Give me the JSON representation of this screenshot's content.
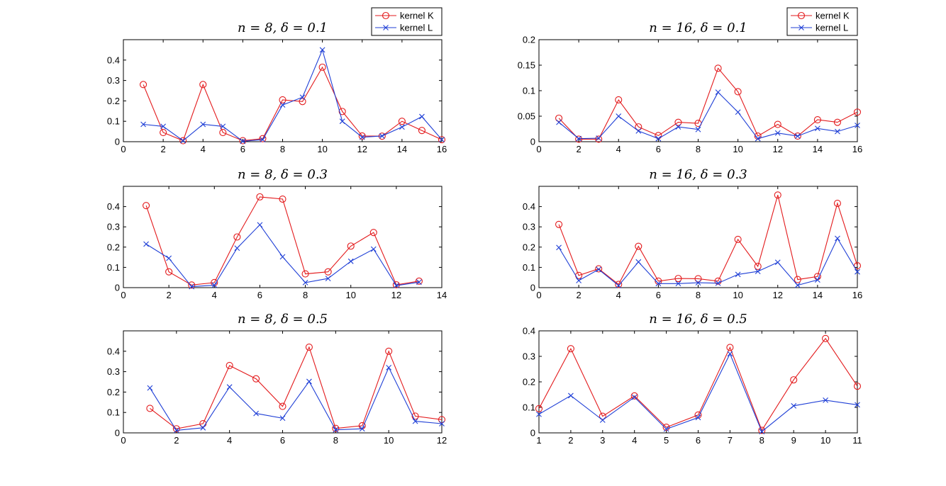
{
  "colors": {
    "kernel_K": "#e31a1c",
    "kernel_L": "#1f3fd6"
  },
  "chart_data": [
    {
      "type": "line",
      "title": "n = 8, δ = 0.1",
      "xlim": [
        0,
        16
      ],
      "ylim": [
        0,
        0.5
      ],
      "xticks": [
        0,
        2,
        4,
        6,
        8,
        10,
        12,
        14,
        16
      ],
      "yticks": [
        0,
        0.1,
        0.2,
        0.3,
        0.4
      ],
      "ytick_labels": [
        "0",
        "0.1",
        "0.2",
        "0.3",
        "0.4"
      ],
      "legend": {
        "placement": "top-right",
        "entries": [
          "kernel K",
          "kernel L"
        ]
      },
      "series": [
        {
          "name": "kernel K",
          "marker": "circle",
          "x": [
            1,
            2,
            3,
            4,
            5,
            6,
            7,
            8,
            9,
            10,
            11,
            12,
            13,
            14,
            15,
            16
          ],
          "values": [
            0.28,
            0.045,
            0.005,
            0.28,
            0.045,
            0.005,
            0.015,
            0.205,
            0.197,
            0.365,
            0.148,
            0.028,
            0.027,
            0.1,
            0.055,
            0.01
          ]
        },
        {
          "name": "kernel L",
          "marker": "x",
          "x": [
            1,
            2,
            3,
            4,
            5,
            6,
            7,
            8,
            9,
            10,
            11,
            12,
            13,
            14,
            15,
            16
          ],
          "values": [
            0.085,
            0.075,
            0.005,
            0.085,
            0.075,
            0.002,
            0.01,
            0.18,
            0.218,
            0.45,
            0.1,
            0.022,
            0.028,
            0.072,
            0.123,
            0.01
          ]
        }
      ]
    },
    {
      "type": "line",
      "title": "n = 16, δ = 0.1",
      "xlim": [
        0,
        16
      ],
      "ylim": [
        0,
        0.2
      ],
      "xticks": [
        0,
        2,
        4,
        6,
        8,
        10,
        12,
        14,
        16
      ],
      "yticks": [
        0,
        0.05,
        0.1,
        0.15,
        0.2
      ],
      "ytick_labels": [
        "0",
        "0.05",
        "0.1",
        "0.15",
        "0.2"
      ],
      "legend": {
        "placement": "top-right",
        "entries": [
          "kernel K",
          "kernel L"
        ]
      },
      "series": [
        {
          "name": "kernel K",
          "marker": "circle",
          "x": [
            1,
            2,
            3,
            4,
            5,
            6,
            7,
            8,
            9,
            10,
            11,
            12,
            13,
            14,
            15,
            16
          ],
          "values": [
            0.046,
            0.005,
            0.005,
            0.082,
            0.029,
            0.012,
            0.038,
            0.036,
            0.144,
            0.098,
            0.011,
            0.034,
            0.011,
            0.043,
            0.038,
            0.058
          ]
        },
        {
          "name": "kernel L",
          "marker": "x",
          "x": [
            1,
            2,
            3,
            4,
            5,
            6,
            7,
            8,
            9,
            10,
            11,
            12,
            13,
            14,
            15,
            16
          ],
          "values": [
            0.038,
            0.006,
            0.007,
            0.05,
            0.021,
            0.006,
            0.029,
            0.024,
            0.097,
            0.058,
            0.006,
            0.017,
            0.011,
            0.026,
            0.02,
            0.032
          ]
        }
      ]
    },
    {
      "type": "line",
      "title": "n = 8, δ = 0.3",
      "xlim": [
        0,
        14
      ],
      "ylim": [
        0,
        0.5
      ],
      "xticks": [
        0,
        2,
        4,
        6,
        8,
        10,
        12,
        14
      ],
      "yticks": [
        0,
        0.1,
        0.2,
        0.3,
        0.4
      ],
      "ytick_labels": [
        "0",
        "0.1",
        "0.2",
        "0.3",
        "0.4"
      ],
      "series": [
        {
          "name": "kernel K",
          "marker": "circle",
          "x": [
            1,
            2,
            3,
            4,
            5,
            6,
            7,
            8,
            9,
            10,
            11,
            12,
            13
          ],
          "values": [
            0.405,
            0.078,
            0.013,
            0.025,
            0.25,
            0.448,
            0.437,
            0.068,
            0.078,
            0.205,
            0.272,
            0.014,
            0.032
          ]
        },
        {
          "name": "kernel L",
          "marker": "x",
          "x": [
            1,
            2,
            3,
            4,
            5,
            6,
            7,
            8,
            9,
            10,
            11,
            12,
            13
          ],
          "values": [
            0.215,
            0.145,
            0.005,
            0.012,
            0.195,
            0.31,
            0.152,
            0.025,
            0.045,
            0.13,
            0.19,
            0.01,
            0.027
          ]
        }
      ]
    },
    {
      "type": "line",
      "title": "n = 16, δ = 0.3",
      "xlim": [
        0,
        16
      ],
      "ylim": [
        0,
        0.5
      ],
      "xticks": [
        0,
        2,
        4,
        6,
        8,
        10,
        12,
        14,
        16
      ],
      "yticks": [
        0,
        0.1,
        0.2,
        0.3,
        0.4
      ],
      "ytick_labels": [
        "0",
        "0.1",
        "0.2",
        "0.3",
        "0.4"
      ],
      "series": [
        {
          "name": "kernel K",
          "marker": "circle",
          "x": [
            1,
            2,
            3,
            4,
            5,
            6,
            7,
            8,
            9,
            10,
            11,
            12,
            13,
            14,
            15,
            16
          ],
          "values": [
            0.312,
            0.06,
            0.093,
            0.016,
            0.204,
            0.032,
            0.045,
            0.044,
            0.032,
            0.238,
            0.105,
            0.457,
            0.04,
            0.055,
            0.416,
            0.108
          ]
        },
        {
          "name": "kernel L",
          "marker": "x",
          "x": [
            1,
            2,
            3,
            4,
            5,
            6,
            7,
            8,
            9,
            10,
            11,
            12,
            13,
            14,
            15,
            16
          ],
          "values": [
            0.198,
            0.035,
            0.09,
            0.01,
            0.127,
            0.02,
            0.02,
            0.024,
            0.022,
            0.065,
            0.08,
            0.125,
            0.012,
            0.038,
            0.243,
            0.078
          ]
        }
      ]
    },
    {
      "type": "line",
      "title": "n = 8, δ = 0.5",
      "xlim": [
        0,
        12
      ],
      "ylim": [
        0,
        0.5
      ],
      "xticks": [
        0,
        2,
        4,
        6,
        8,
        10,
        12
      ],
      "yticks": [
        0,
        0.1,
        0.2,
        0.3,
        0.4
      ],
      "ytick_labels": [
        "0",
        "0.1",
        "0.2",
        "0.3",
        "0.4"
      ],
      "series": [
        {
          "name": "kernel K",
          "marker": "circle",
          "x": [
            1,
            2,
            3,
            4,
            5,
            6,
            7,
            8,
            9,
            10,
            11,
            12
          ],
          "values": [
            0.12,
            0.02,
            0.045,
            0.33,
            0.265,
            0.13,
            0.42,
            0.022,
            0.035,
            0.4,
            0.082,
            0.065
          ]
        },
        {
          "name": "kernel L",
          "marker": "x",
          "x": [
            1,
            2,
            3,
            4,
            5,
            6,
            7,
            8,
            9,
            10,
            11,
            12
          ],
          "values": [
            0.22,
            0.012,
            0.025,
            0.225,
            0.095,
            0.072,
            0.252,
            0.015,
            0.02,
            0.32,
            0.057,
            0.045
          ]
        }
      ]
    },
    {
      "type": "line",
      "title": "n = 16, δ = 0.5",
      "xlim": [
        1,
        11
      ],
      "ylim": [
        0,
        0.4
      ],
      "xticks": [
        1,
        2,
        3,
        4,
        5,
        6,
        7,
        8,
        9,
        10,
        11
      ],
      "yticks": [
        0,
        0.1,
        0.2,
        0.3,
        0.4
      ],
      "ytick_labels": [
        "0",
        "0.1",
        "0.2",
        "0.3",
        "0.4"
      ],
      "series": [
        {
          "name": "kernel K",
          "marker": "circle",
          "x": [
            1,
            2,
            3,
            4,
            5,
            6,
            7,
            8,
            9,
            10,
            11
          ],
          "values": [
            0.095,
            0.33,
            0.065,
            0.145,
            0.022,
            0.07,
            0.335,
            0.01,
            0.208,
            0.37,
            0.183
          ]
        },
        {
          "name": "kernel L",
          "marker": "x",
          "x": [
            1,
            2,
            3,
            4,
            5,
            6,
            7,
            8,
            9,
            10,
            11
          ],
          "values": [
            0.073,
            0.146,
            0.05,
            0.14,
            0.015,
            0.06,
            0.31,
            0.005,
            0.106,
            0.128,
            0.11
          ]
        }
      ]
    }
  ]
}
